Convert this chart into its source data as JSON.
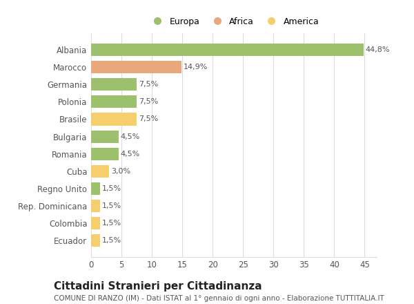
{
  "categories": [
    "Albania",
    "Marocco",
    "Germania",
    "Polonia",
    "Brasile",
    "Bulgaria",
    "Romania",
    "Cuba",
    "Regno Unito",
    "Rep. Dominicana",
    "Colombia",
    "Ecuador"
  ],
  "values": [
    44.8,
    14.9,
    7.5,
    7.5,
    7.5,
    4.5,
    4.5,
    3.0,
    1.5,
    1.5,
    1.5,
    1.5
  ],
  "labels": [
    "44,8%",
    "14,9%",
    "7,5%",
    "7,5%",
    "7,5%",
    "4,5%",
    "4,5%",
    "3,0%",
    "1,5%",
    "1,5%",
    "1,5%",
    "1,5%"
  ],
  "colors": [
    "#9dc06c",
    "#e8a87c",
    "#9dc06c",
    "#9dc06c",
    "#f5ce6e",
    "#9dc06c",
    "#9dc06c",
    "#f5ce6e",
    "#9dc06c",
    "#f5ce6e",
    "#f5ce6e",
    "#f5ce6e"
  ],
  "legend_labels": [
    "Europa",
    "Africa",
    "America"
  ],
  "legend_colors": [
    "#9dc06c",
    "#e8a87c",
    "#f5ce6e"
  ],
  "title": "Cittadini Stranieri per Cittadinanza",
  "subtitle": "COMUNE DI RANZO (IM) - Dati ISTAT al 1° gennaio di ogni anno - Elaborazione TUTTITALIA.IT",
  "xlim": [
    0,
    47
  ],
  "xticks": [
    0,
    5,
    10,
    15,
    20,
    25,
    30,
    35,
    40,
    45
  ],
  "background_color": "#ffffff",
  "grid_color": "#dddddd",
  "bar_height": 0.72,
  "title_fontsize": 11,
  "subtitle_fontsize": 7.5,
  "label_fontsize": 8,
  "tick_fontsize": 8.5,
  "legend_fontsize": 9
}
